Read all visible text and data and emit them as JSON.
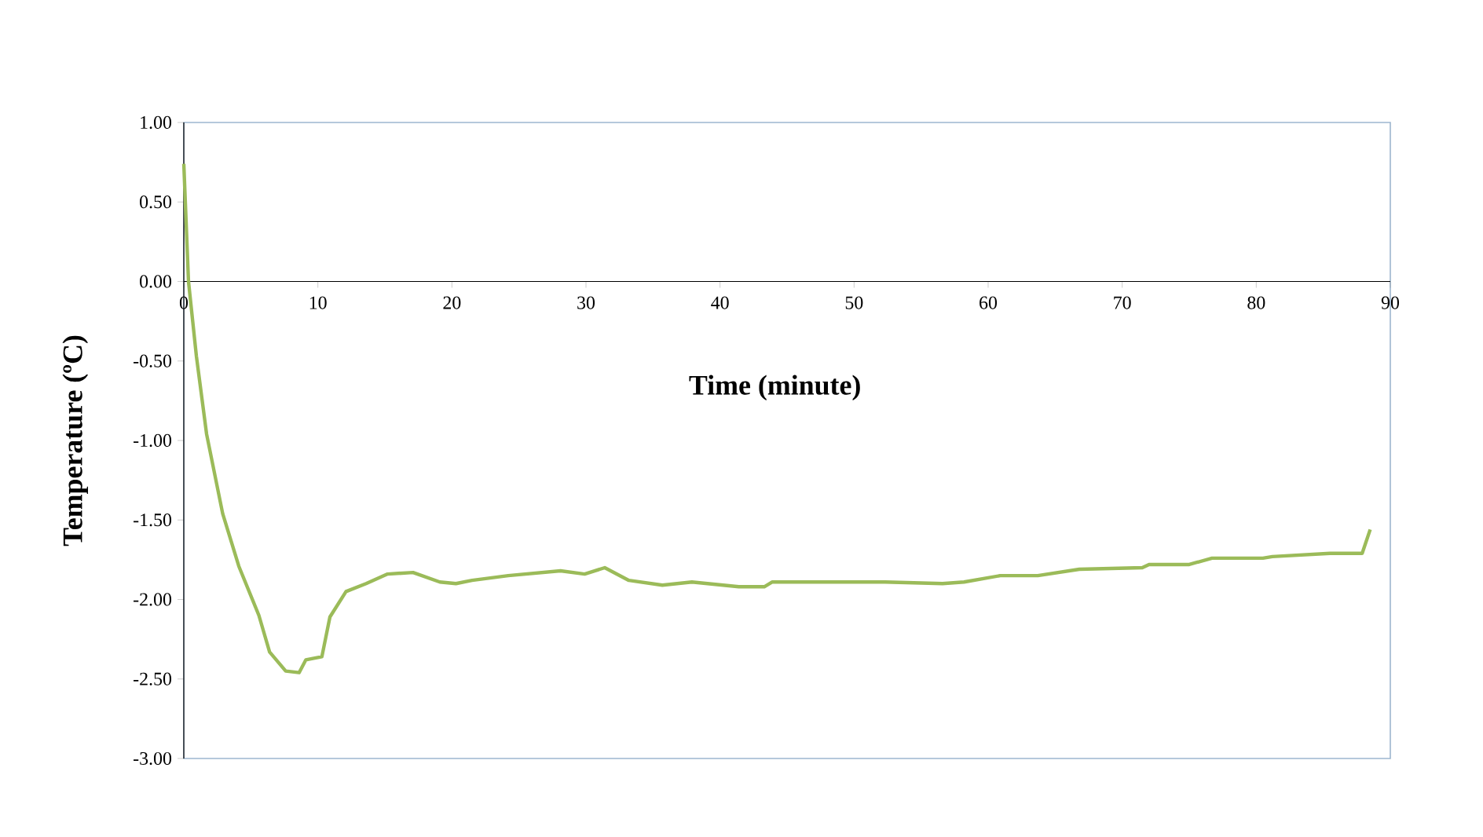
{
  "chart_data": {
    "type": "line",
    "xlabel": "Time (minute)",
    "ylabel": "Temperature (ºC)",
    "x": [
      0,
      0.35,
      0.94,
      1.7,
      2.9,
      4.1,
      5.6,
      6.4,
      7.6,
      8.6,
      9.1,
      10.3,
      10.9,
      12.1,
      13.6,
      15.2,
      17.1,
      19.1,
      20.3,
      21.5,
      24.2,
      28.1,
      29.9,
      31.4,
      33.2,
      35.7,
      37.9,
      41.4,
      43.3,
      43.9,
      47.6,
      52.3,
      56.6,
      58.2,
      60.9,
      63.7,
      66.8,
      71.5,
      72.0,
      75.0,
      76.7,
      80.5,
      81.2,
      85.5,
      87.9,
      88.5
    ],
    "values": [
      0.74,
      0,
      -0.47,
      -0.96,
      -1.46,
      -1.79,
      -2.1,
      -2.33,
      -2.45,
      -2.46,
      -2.38,
      -2.36,
      -2.11,
      -1.95,
      -1.9,
      -1.84,
      -1.83,
      -1.89,
      -1.9,
      -1.88,
      -1.85,
      -1.82,
      -1.84,
      -1.8,
      -1.88,
      -1.91,
      -1.89,
      -1.92,
      -1.92,
      -1.89,
      -1.89,
      -1.89,
      -1.9,
      -1.89,
      -1.85,
      -1.85,
      -1.81,
      -1.8,
      -1.78,
      -1.78,
      -1.74,
      -1.74,
      -1.73,
      -1.71,
      -1.71,
      -1.56
    ],
    "color": "#9bbb59",
    "marker": "none",
    "line_style": "solid",
    "grid": false,
    "xlim": [
      0,
      90
    ],
    "xticks": [
      0,
      10,
      20,
      30,
      40,
      50,
      60,
      70,
      80,
      90
    ],
    "ylim": [
      -3,
      1
    ],
    "yticks": [
      {
        "value": 1,
        "label": "1.00"
      },
      {
        "value": 0.5,
        "label": "0.50"
      },
      {
        "value": 0,
        "label": "0.00"
      },
      {
        "value": -0.5,
        "label": "-0.50"
      },
      {
        "value": -1,
        "label": "-1.00"
      },
      {
        "value": -1.5,
        "label": "-1.50"
      },
      {
        "value": -2,
        "label": "-2.00"
      },
      {
        "value": -2.5,
        "label": "-2.50"
      },
      {
        "value": -3,
        "label": "-3.00"
      }
    ]
  }
}
